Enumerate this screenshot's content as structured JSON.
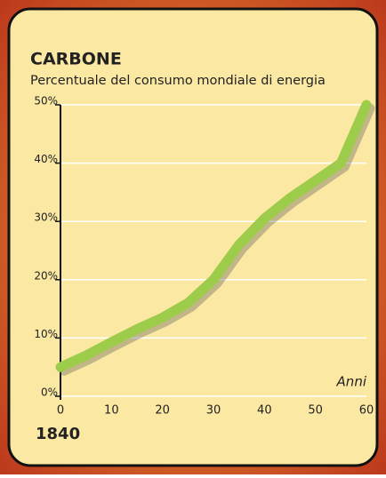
{
  "chart_data": {
    "type": "line",
    "title": "CARBONE",
    "subtitle": "Percentuale del consumo mondiale di energia",
    "x_label": "Anni",
    "annotation": "1840",
    "x": [
      0,
      5,
      10,
      15,
      20,
      25,
      30,
      35,
      40,
      45,
      50,
      55,
      60
    ],
    "series": [
      {
        "color": "#9dcb4a",
        "values": [
          5,
          7,
          9.3,
          11.5,
          13.5,
          16,
          20,
          26,
          30.5,
          34,
          37,
          40,
          50
        ]
      }
    ],
    "xlim": [
      0,
      60
    ],
    "xticks": [
      0,
      10,
      20,
      30,
      40,
      50,
      60
    ],
    "ylim": [
      0,
      50
    ],
    "yticks": [
      {
        "value": 0,
        "label": "0%"
      },
      {
        "value": 10,
        "label": "10%"
      },
      {
        "value": 20,
        "label": "20%"
      },
      {
        "value": 30,
        "label": "30%"
      },
      {
        "value": 40,
        "label": "40%"
      },
      {
        "value": 50,
        "label": "50%"
      }
    ],
    "grid": true
  }
}
